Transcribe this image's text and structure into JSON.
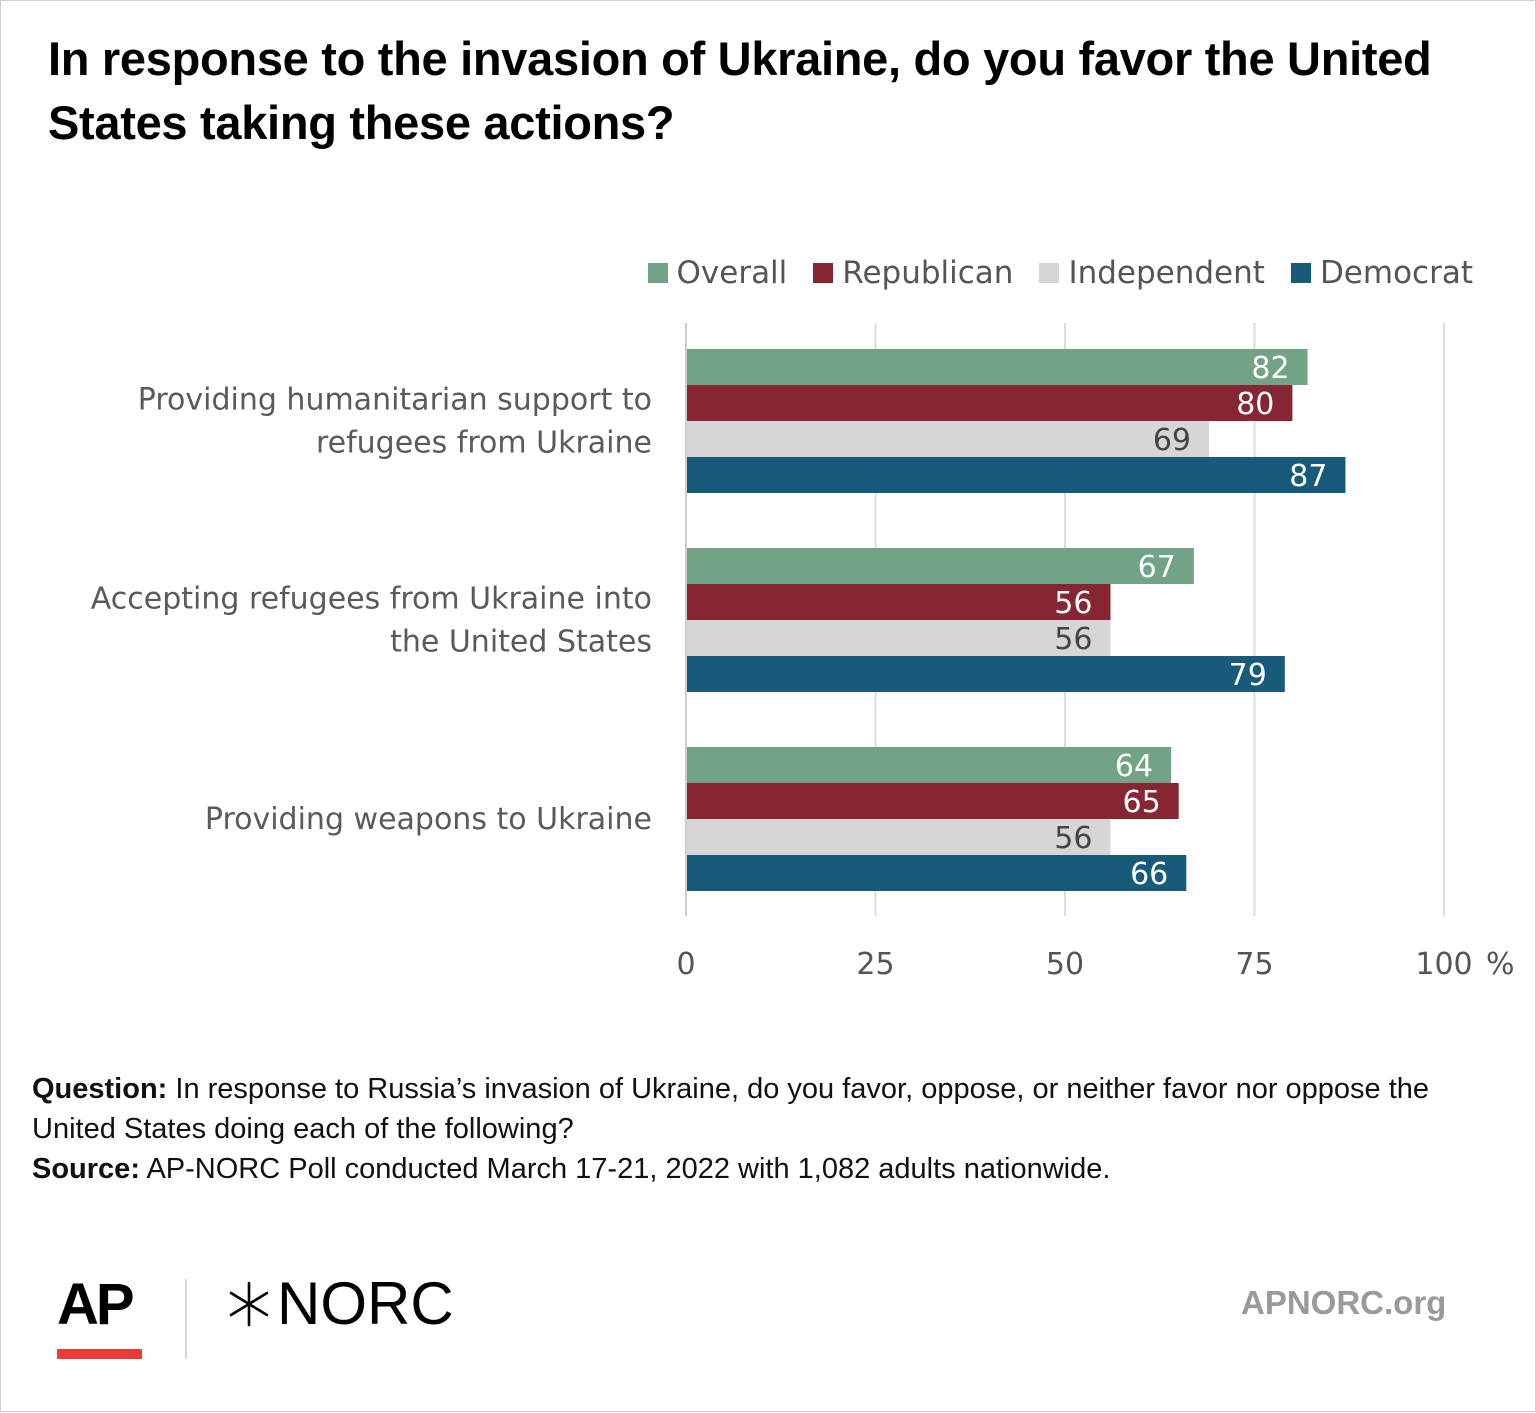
{
  "title": "In response to the invasion of Ukraine, do you favor the United States taking these actions?",
  "chart_data": {
    "type": "bar",
    "orientation": "horizontal",
    "categories": [
      "Providing humanitarian support to refugees from Ukraine",
      "Accepting refugees from Ukraine into the United States",
      "Providing weapons to Ukraine"
    ],
    "series": [
      {
        "name": "Overall",
        "color": "#72a386",
        "label_color": "#ffffff",
        "values": [
          82,
          67,
          64
        ]
      },
      {
        "name": "Republican",
        "color": "#862633",
        "label_color": "#ffffff",
        "values": [
          80,
          56,
          65
        ]
      },
      {
        "name": "Independent",
        "color": "#d6d6d6",
        "label_color": "#444444",
        "values": [
          69,
          56,
          56
        ]
      },
      {
        "name": "Democrat",
        "color": "#175a7a",
        "label_color": "#ffffff",
        "values": [
          87,
          79,
          66
        ]
      }
    ],
    "xlim": [
      0,
      100
    ],
    "xticks": [
      "0",
      "25",
      "50",
      "75",
      "100"
    ],
    "xunit": "%",
    "grid": true,
    "legend_position": "top-right",
    "data_labels": true
  },
  "notes": {
    "question_label": "Question:",
    "question_text": "In response to Russia’s invasion of Ukraine, do you favor, oppose, or neither favor nor oppose the United States doing each of the following?",
    "source_label": "Source:",
    "source_text": "AP-NORC Poll conducted March 17-21, 2022 with 1,082 adults nationwide."
  },
  "branding": {
    "ap_logo": "AP",
    "norc_logo": "NORC",
    "norc_icon": "norc-star-icon",
    "website": "APNORC.org"
  }
}
